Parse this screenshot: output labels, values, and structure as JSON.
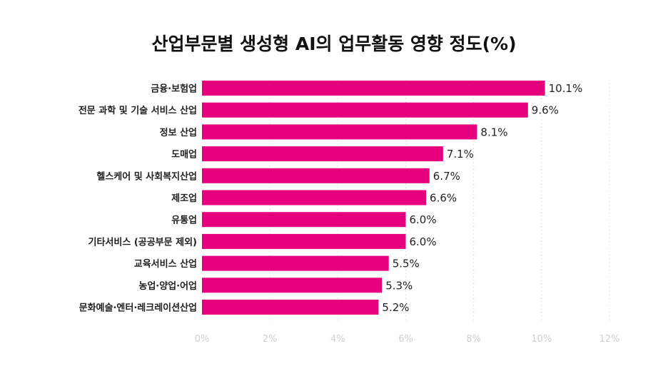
{
  "chart_data": {
    "type": "bar",
    "orientation": "horizontal",
    "title": "산업부문별 생성형 AI의 업무활동 영향 정도(%)",
    "categories": [
      "금융·보험업",
      "전문 과학 및 기술 서비스 산업",
      "정보 산업",
      "도매업",
      "헬스케어 및 사회복지산업",
      "제조업",
      "유통업",
      "기타서비스 (공공부문 제외)",
      "교육서비스 산업",
      "농업·양업·어업",
      "문화예술·엔터·레크레이션산업"
    ],
    "values": [
      10.1,
      9.6,
      8.1,
      7.1,
      6.7,
      6.6,
      6.0,
      6.0,
      5.5,
      5.3,
      5.2
    ],
    "value_labels": [
      "10.1%",
      "9.6%",
      "8.1%",
      "7.1%",
      "6.7%",
      "6.6%",
      "6.0%",
      "6.0%",
      "5.5%",
      "5.3%",
      "5.2%"
    ],
    "x_ticks": [
      "0%",
      "2%",
      "4%",
      "6%",
      "8%",
      "10%",
      "12%"
    ],
    "xlim": [
      0,
      12
    ],
    "grid": true,
    "bar_color": "#e6007e"
  }
}
